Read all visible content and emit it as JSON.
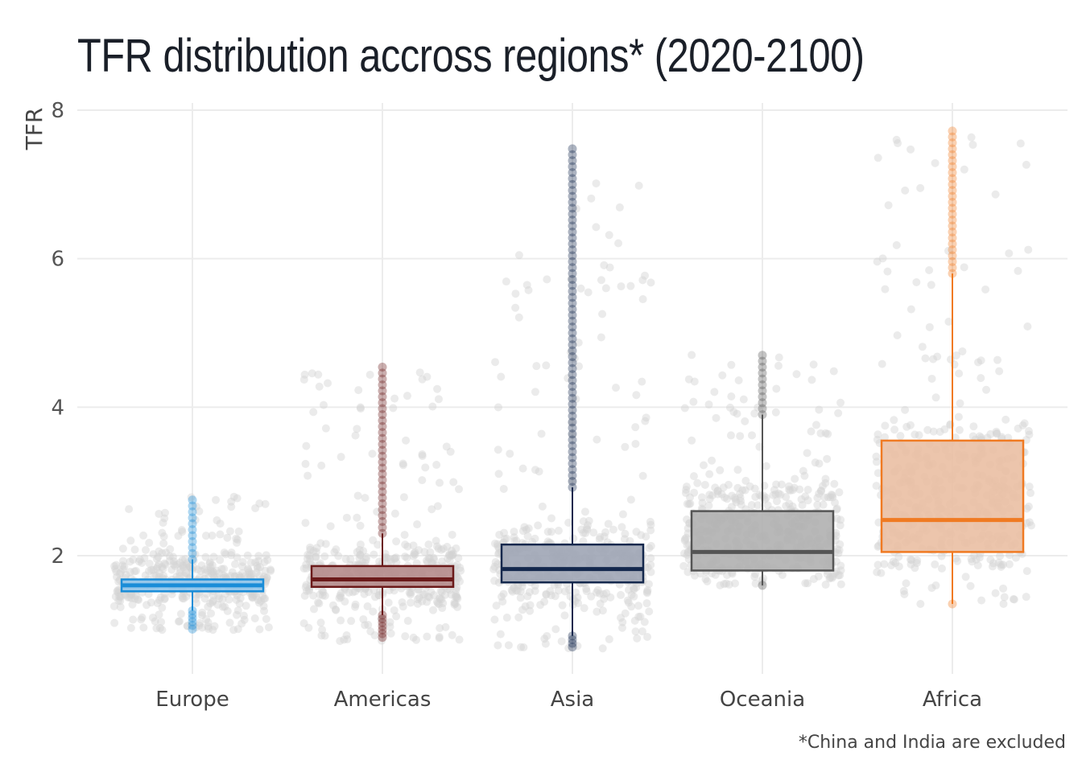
{
  "chart_data": {
    "type": "box",
    "title": "TFR distribution accross regions* (2020-2100)",
    "caption": "*China and India are excluded",
    "ylabel": "TFR",
    "xlabel": "",
    "ylim": [
      0.5,
      8
    ],
    "yticks": [
      2,
      4,
      6,
      8
    ],
    "grid": true,
    "categories": [
      "Europe",
      "Americas",
      "Asia",
      "Oceania",
      "Africa"
    ],
    "series": [
      {
        "category": "Europe",
        "color": "#1a8dd8",
        "fill": "#8ec4eb",
        "q1": 1.52,
        "median": 1.6,
        "q3": 1.68,
        "whisker_low": 1.26,
        "whisker_high": 1.95,
        "min": 1.0,
        "max": 2.8,
        "spread_low": 1.0,
        "spread_high": 2.8
      },
      {
        "category": "Americas",
        "color": "#6b1a1a",
        "fill": "#b58b8b",
        "q1": 1.58,
        "median": 1.68,
        "q3": 1.86,
        "whisker_low": 1.2,
        "whisker_high": 2.3,
        "min": 0.85,
        "max": 4.55,
        "spread_low": 0.85,
        "spread_high": 4.5
      },
      {
        "category": "Asia",
        "color": "#14284d",
        "fill": "#9ea5b5",
        "q1": 1.64,
        "median": 1.82,
        "q3": 2.15,
        "whisker_low": 0.92,
        "whisker_high": 2.92,
        "min": 0.75,
        "max": 7.5,
        "spread_low": 0.75,
        "spread_high": 7.5
      },
      {
        "category": "Oceania",
        "color": "#555555",
        "fill": "#b0b0b0",
        "q1": 1.8,
        "median": 2.05,
        "q3": 2.6,
        "whisker_low": 1.6,
        "whisker_high": 3.9,
        "min": 1.6,
        "max": 4.75,
        "spread_low": 1.6,
        "spread_high": 4.75
      },
      {
        "category": "Africa",
        "color": "#f07a22",
        "fill": "#eabfa3",
        "q1": 2.05,
        "median": 2.48,
        "q3": 3.55,
        "whisker_low": 1.35,
        "whisker_high": 5.8,
        "min": 1.35,
        "max": 7.75,
        "spread_low": 1.35,
        "spread_high": 7.7
      }
    ]
  }
}
